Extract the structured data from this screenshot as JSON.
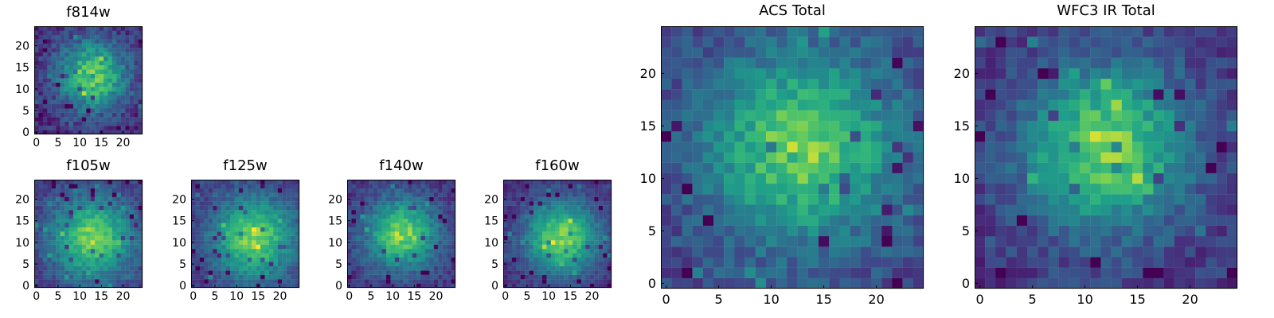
{
  "chart_data": [
    {
      "type": "heatmap",
      "title": "f814w",
      "xlim": [
        -0.5,
        24.5
      ],
      "ylim": [
        -0.5,
        24.5
      ],
      "xticks": [
        0,
        5,
        10,
        15,
        20
      ],
      "yticks": [
        0,
        5,
        10,
        15,
        20
      ],
      "grid": false,
      "colormap": "viridis",
      "peak": [
        13,
        13
      ],
      "profile": {
        "amp": 0.72,
        "sigma": 6.0,
        "noise": 0.25,
        "base": 0.12,
        "seed": 11
      }
    },
    {
      "type": "heatmap",
      "title": "f105w",
      "xlim": [
        -0.5,
        24.5
      ],
      "ylim": [
        -0.5,
        24.5
      ],
      "xticks": [
        0,
        5,
        10,
        15,
        20
      ],
      "yticks": [
        0,
        5,
        10,
        15,
        20
      ],
      "grid": false,
      "colormap": "viridis",
      "peak": [
        13,
        11
      ],
      "profile": {
        "amp": 0.7,
        "sigma": 6.8,
        "noise": 0.18,
        "base": 0.18,
        "seed": 23
      }
    },
    {
      "type": "heatmap",
      "title": "f125w",
      "xlim": [
        -0.5,
        24.5
      ],
      "ylim": [
        -0.5,
        24.5
      ],
      "xticks": [
        0,
        5,
        10,
        15,
        20
      ],
      "yticks": [
        0,
        5,
        10,
        15,
        20
      ],
      "grid": false,
      "colormap": "viridis",
      "peak": [
        14,
        11
      ],
      "profile": {
        "amp": 0.7,
        "sigma": 6.8,
        "noise": 0.18,
        "base": 0.18,
        "seed": 37
      }
    },
    {
      "type": "heatmap",
      "title": "f140w",
      "xlim": [
        -0.5,
        24.5
      ],
      "ylim": [
        -0.5,
        24.5
      ],
      "xticks": [
        0,
        5,
        10,
        15,
        20
      ],
      "yticks": [
        0,
        5,
        10,
        15,
        20
      ],
      "grid": false,
      "colormap": "viridis",
      "peak": [
        12,
        12
      ],
      "profile": {
        "amp": 0.72,
        "sigma": 6.0,
        "noise": 0.2,
        "base": 0.16,
        "seed": 41
      }
    },
    {
      "type": "heatmap",
      "title": "f160w",
      "xlim": [
        -0.5,
        24.5
      ],
      "ylim": [
        -0.5,
        24.5
      ],
      "xticks": [
        0,
        5,
        10,
        15,
        20
      ],
      "yticks": [
        0,
        5,
        10,
        15,
        20
      ],
      "grid": false,
      "colormap": "viridis",
      "peak": [
        13,
        11
      ],
      "profile": {
        "amp": 0.75,
        "sigma": 6.2,
        "noise": 0.16,
        "base": 0.14,
        "seed": 53
      }
    },
    {
      "type": "heatmap",
      "title": "ACS Total",
      "xlim": [
        -0.5,
        24.5
      ],
      "ylim": [
        -0.5,
        24.5
      ],
      "xticks": [
        0,
        5,
        10,
        15,
        20
      ],
      "yticks": [
        0,
        5,
        10,
        15,
        20
      ],
      "grid": false,
      "colormap": "viridis",
      "peak": [
        13,
        13
      ],
      "profile": {
        "amp": 0.65,
        "sigma": 6.5,
        "noise": 0.22,
        "base": 0.22,
        "seed": 67
      }
    },
    {
      "type": "heatmap",
      "title": "WFC3 IR Total",
      "xlim": [
        -0.5,
        24.5
      ],
      "ylim": [
        -0.5,
        24.5
      ],
      "xticks": [
        0,
        5,
        10,
        15,
        20
      ],
      "yticks": [
        0,
        5,
        10,
        15,
        20
      ],
      "grid": false,
      "colormap": "viridis",
      "peak": [
        12,
        13
      ],
      "profile": {
        "amp": 0.7,
        "sigma": 5.5,
        "noise": 0.22,
        "base": 0.18,
        "seed": 79
      }
    }
  ]
}
